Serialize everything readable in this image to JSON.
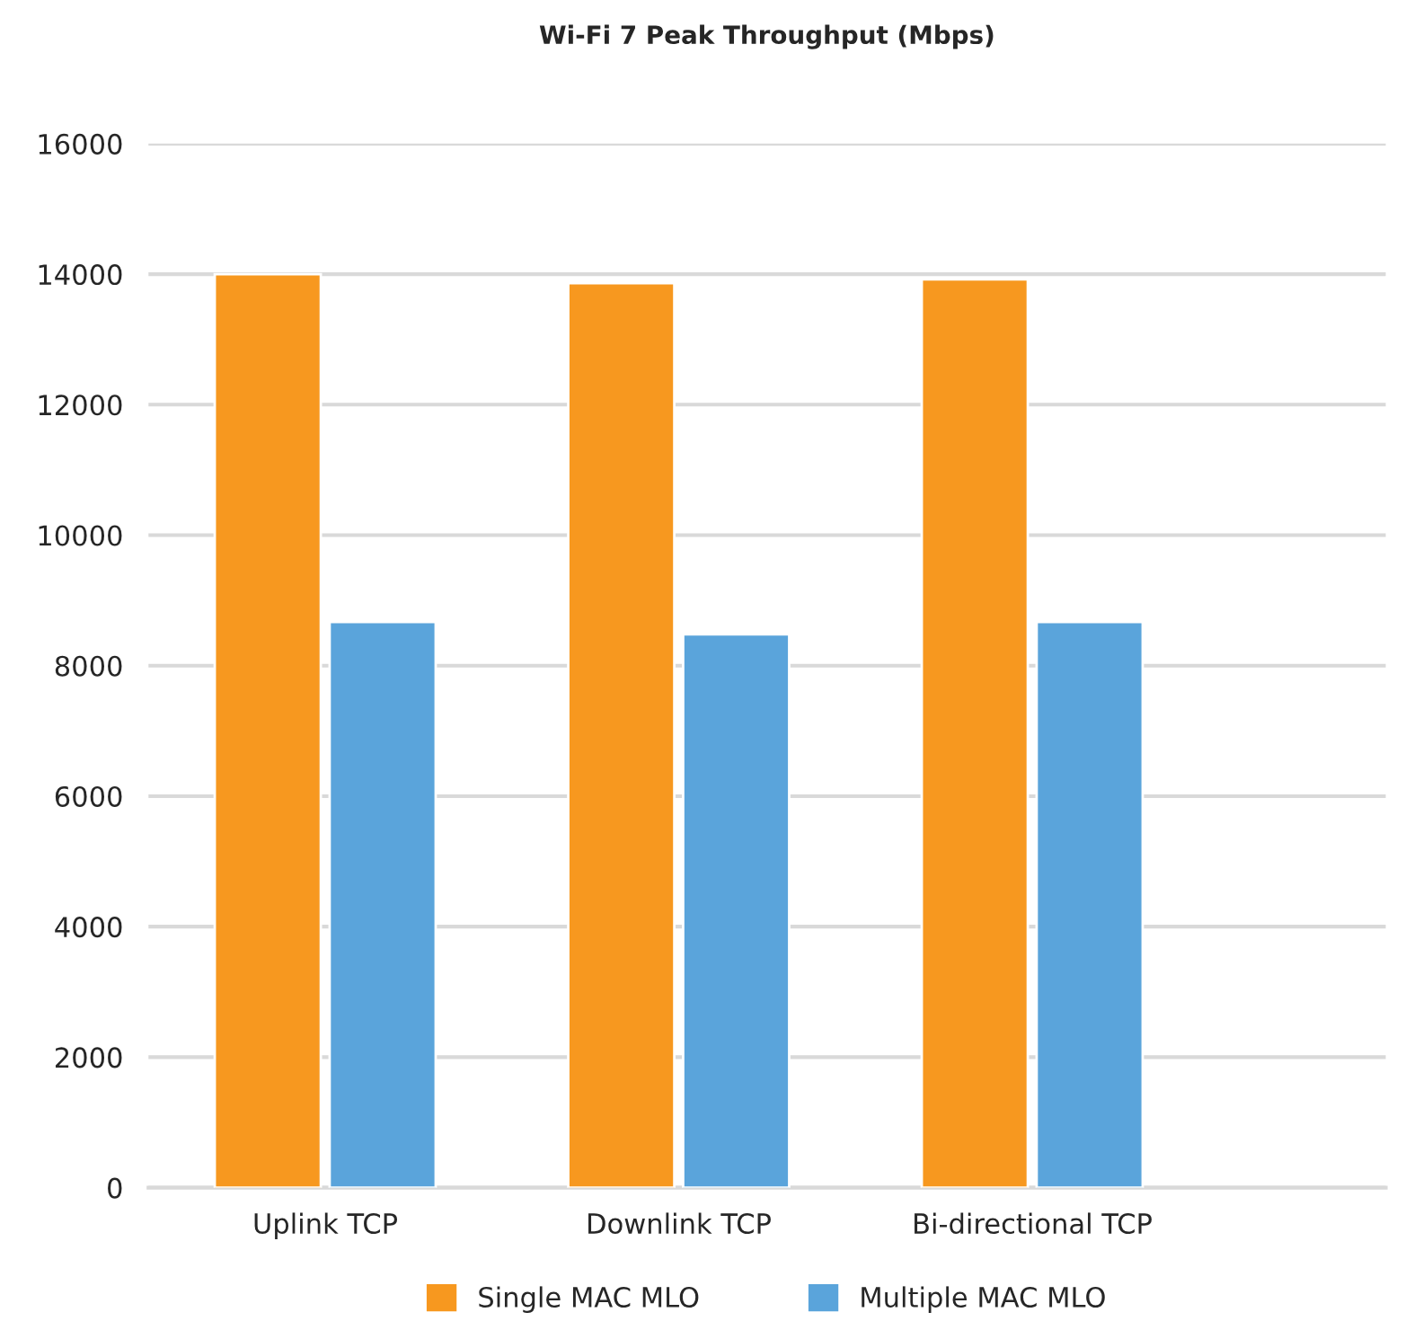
{
  "chart_data": {
    "type": "bar",
    "title": "Wi-Fi 7 Peak Throughput (Mbps)",
    "categories": [
      "Uplink TCP",
      "Downlink TCP",
      "Bi-directional TCP"
    ],
    "series": [
      {
        "name": "Single MAC MLO",
        "color": "#f7981f",
        "values": [
          14000,
          13860,
          13920
        ]
      },
      {
        "name": "Multiple MAC MLO",
        "color": "#5aa4db",
        "values": [
          8670,
          8480,
          8670
        ]
      }
    ],
    "ylim": [
      0,
      16000
    ],
    "yticks": [
      0,
      2000,
      4000,
      6000,
      8000,
      10000,
      12000,
      14000,
      16000
    ],
    "grid": "y",
    "legend": "bottom"
  }
}
